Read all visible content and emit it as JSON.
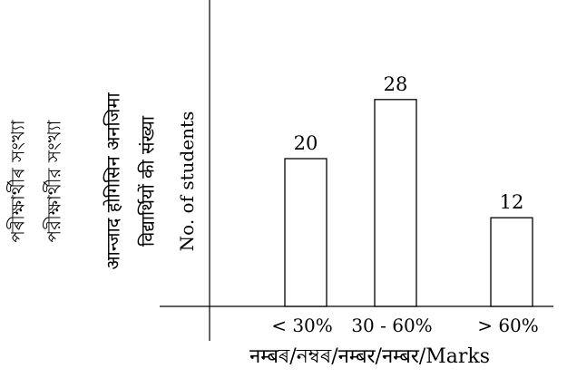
{
  "chart_data": {
    "type": "bar",
    "categories": [
      "< 30%",
      "30 - 60%",
      "> 60%"
    ],
    "values": [
      20,
      28,
      12
    ],
    "data_labels": [
      "20",
      "28",
      "12"
    ],
    "xlabel": "नम्बৰ/নম্বৰ/नम्बर/नम्बर/Marks",
    "ylabels": [
      "পৰীক্ষাৰ্থীৰ সংখ্যা",
      "পরীক্ষার্থীর সংখ্যা",
      "आन्जाद होगिसिन अनजिमा",
      "विद्यार्थियों की संख्या",
      "No. of students"
    ],
    "ylim": [
      0,
      35
    ],
    "grid": false,
    "bar_fill": "#ffffff",
    "bar_stroke": "#000000"
  }
}
